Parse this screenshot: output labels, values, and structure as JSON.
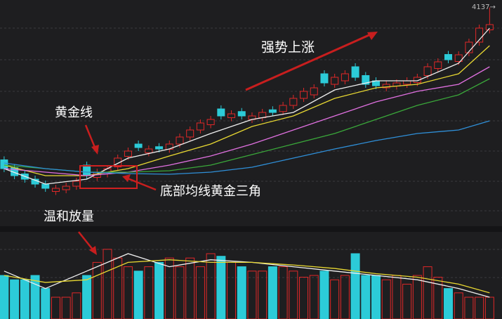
{
  "chart_data": {
    "type": "candlestick",
    "annotations": {
      "trend": "强势上涨",
      "golden_line": "黄金线",
      "golden_triangle": "底部均线黄金三角",
      "volume_note": "温和放量"
    },
    "high_label": {
      "value": 4137,
      "label": "4137→"
    },
    "up_color": "#e02828",
    "down_color": "#2ccbd8",
    "xlim": [
      -0.4,
      48.2
    ],
    "ylim": [
      2900,
      4180
    ],
    "volume_ylim": [
      0,
      100
    ],
    "open": [
      3270,
      3225,
      3190,
      3160,
      3132,
      3090,
      3100,
      3120,
      3240,
      3170,
      3190,
      3230,
      3290,
      3360,
      3310,
      3345,
      3330,
      3360,
      3400,
      3440,
      3470,
      3560,
      3510,
      3545,
      3500,
      3510,
      3555,
      3545,
      3580,
      3620,
      3640,
      3760,
      3700,
      3720,
      3800,
      3750,
      3720,
      3680,
      3690,
      3700,
      3710,
      3750,
      3790,
      3870,
      3830,
      3880,
      3940,
      4010
    ],
    "high": [
      3290,
      3245,
      3210,
      3180,
      3152,
      3128,
      3140,
      3168,
      3260,
      3220,
      3240,
      3300,
      3340,
      3380,
      3352,
      3365,
      3380,
      3420,
      3460,
      3500,
      3520,
      3580,
      3552,
      3565,
      3540,
      3560,
      3575,
      3600,
      3640,
      3680,
      3700,
      3780,
      3760,
      3780,
      3820,
      3770,
      3740,
      3720,
      3728,
      3740,
      3760,
      3820,
      3848,
      3890,
      3888,
      3960,
      4040,
      4137
    ],
    "low": [
      3200,
      3160,
      3140,
      3112,
      3088,
      3070,
      3080,
      3100,
      3160,
      3150,
      3170,
      3210,
      3270,
      3320,
      3290,
      3312,
      3310,
      3340,
      3380,
      3420,
      3450,
      3500,
      3490,
      3500,
      3480,
      3490,
      3520,
      3525,
      3560,
      3600,
      3620,
      3688,
      3680,
      3700,
      3720,
      3680,
      3672,
      3660,
      3670,
      3680,
      3690,
      3730,
      3770,
      3820,
      3810,
      3860,
      3920,
      3990
    ],
    "close": [
      3220,
      3180,
      3160,
      3132,
      3108,
      3108,
      3120,
      3148,
      3180,
      3200,
      3220,
      3280,
      3320,
      3340,
      3332,
      3332,
      3360,
      3400,
      3440,
      3480,
      3500,
      3520,
      3532,
      3520,
      3520,
      3540,
      3540,
      3580,
      3620,
      3660,
      3680,
      3708,
      3740,
      3760,
      3740,
      3700,
      3692,
      3700,
      3708,
      3720,
      3740,
      3800,
      3828,
      3840,
      3868,
      3940,
      4020,
      4040
    ],
    "volume": [
      50,
      45,
      45,
      50,
      35,
      25,
      25,
      30,
      50,
      65,
      80,
      70,
      60,
      55,
      60,
      65,
      70,
      60,
      70,
      60,
      75,
      72,
      65,
      60,
      55,
      55,
      60,
      60,
      55,
      48,
      50,
      55,
      45,
      50,
      75,
      50,
      50,
      45,
      50,
      40,
      50,
      60,
      48,
      35,
      30,
      25,
      25,
      25
    ],
    "ma_lines": [
      {
        "color": "#f0f0f0",
        "x": [
          0,
          4,
          8,
          12,
          16,
          20,
          24,
          28,
          32,
          36,
          40,
          44,
          47
        ],
        "values": [
          3220,
          3132,
          3160,
          3280,
          3332,
          3420,
          3500,
          3540,
          3668,
          3720,
          3720,
          3820,
          4020
        ]
      },
      {
        "color": "#e8d832",
        "x": [
          0,
          4,
          8,
          12,
          16,
          20,
          24,
          28,
          32,
          36,
          40,
          44,
          47
        ],
        "values": [
          3240,
          3180,
          3180,
          3220,
          3292,
          3360,
          3460,
          3520,
          3620,
          3680,
          3700,
          3760,
          3920
        ]
      },
      {
        "color": "#e070e0",
        "x": [
          0,
          4,
          8,
          12,
          16,
          20,
          24,
          28,
          32,
          36,
          40,
          44,
          47
        ],
        "values": [
          3220,
          3200,
          3180,
          3200,
          3240,
          3292,
          3360,
          3440,
          3520,
          3600,
          3660,
          3700,
          3800
        ]
      },
      {
        "color": "#3aa83a",
        "x": [
          0,
          4,
          8,
          12,
          16,
          20,
          24,
          28,
          32,
          36,
          40,
          44,
          47
        ],
        "values": [
          3240,
          3220,
          3200,
          3200,
          3208,
          3240,
          3300,
          3360,
          3420,
          3500,
          3580,
          3640,
          3732
        ]
      },
      {
        "color": "#2f8fd8",
        "x": [
          0,
          4,
          8,
          12,
          16,
          20,
          24,
          28,
          32,
          36,
          40,
          44,
          47
        ],
        "values": [
          3252,
          3220,
          3200,
          3192,
          3188,
          3200,
          3228,
          3280,
          3332,
          3380,
          3420,
          3440,
          3492
        ]
      }
    ],
    "volume_ma_lines": [
      {
        "color": "#f0f0f0",
        "x": [
          0,
          4,
          8,
          12,
          16,
          20,
          24,
          28,
          32,
          36,
          40,
          44,
          47
        ],
        "values": [
          55,
          35,
          55,
          75,
          60,
          68,
          65,
          60,
          55,
          50,
          45,
          35,
          25
        ]
      },
      {
        "color": "#e8d832",
        "x": [
          0,
          4,
          8,
          12,
          16,
          20,
          24,
          28,
          32,
          36,
          40,
          44,
          47
        ],
        "values": [
          50,
          42,
          45,
          65,
          68,
          65,
          65,
          62,
          58,
          52,
          48,
          40,
          30
        ]
      }
    ]
  }
}
